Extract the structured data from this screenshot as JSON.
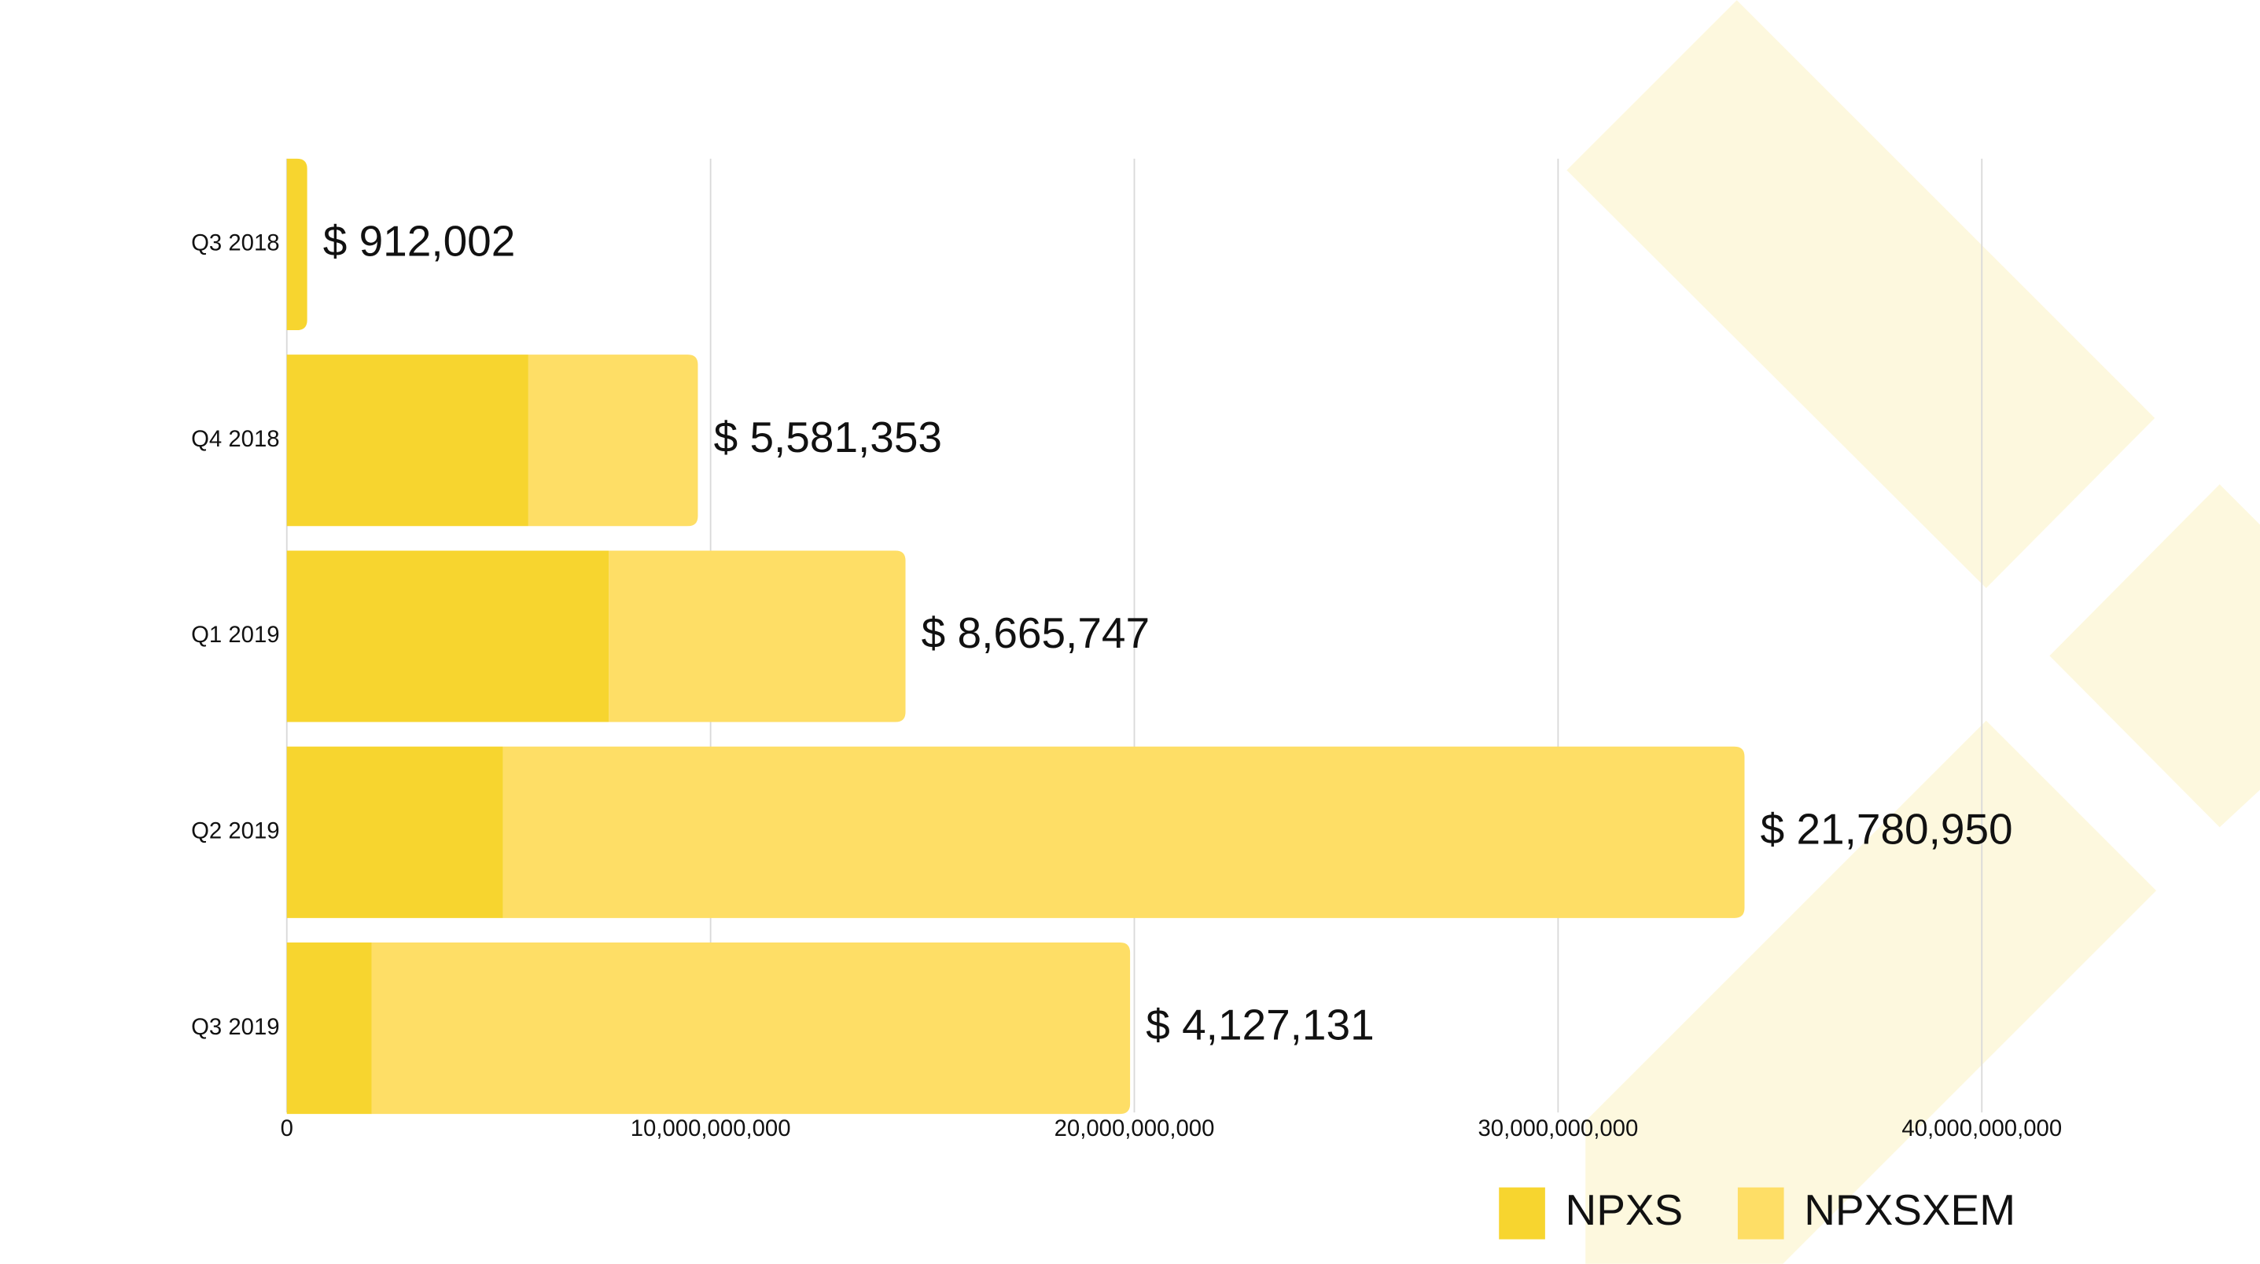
{
  "chart_data": {
    "type": "stacked_barh",
    "categories": [
      "Q3 2018",
      "Q4 2018",
      "Q1 2019",
      "Q2 2019",
      "Q3 2019"
    ],
    "series": [
      {
        "name": "NPXS",
        "color": "#f7d52f",
        "values": [
          480000000,
          5700000000,
          7600000000,
          5100000000,
          2000000000
        ]
      },
      {
        "name": "NPXSXEM",
        "color": "#fede66",
        "values": [
          0,
          4000000000,
          7000000000,
          29300000000,
          17900000000
        ]
      }
    ],
    "annotations": [
      "$ 912,002",
      "$ 5,581,353",
      "$ 8,665,747",
      "$ 21,780,950",
      "$ 4,127,131"
    ],
    "xlim": [
      0,
      40000000000
    ],
    "xticks": [
      0,
      {
        "value": 10000000000,
        "label": "10,000,000,000"
      },
      {
        "value": 20000000000,
        "label": "20,000,000,000"
      },
      {
        "value": 30000000000,
        "label": "30,000,000,000"
      },
      {
        "value": 40000000000,
        "label": "40,000,000,000"
      }
    ],
    "grid": true,
    "legend": "bottom-right"
  }
}
